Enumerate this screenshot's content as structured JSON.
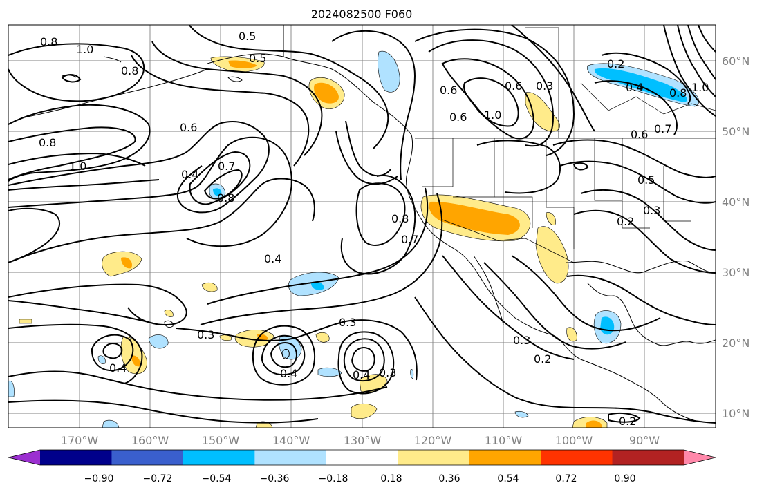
{
  "title": "2024082500 F060",
  "map": {
    "lon_labels": [
      "170°W",
      "160°W",
      "150°W",
      "140°W",
      "130°W",
      "120°W",
      "110°W",
      "100°W",
      "90°W"
    ],
    "lat_labels": [
      "60°N",
      "50°N",
      "40°N",
      "30°N",
      "20°N",
      "10°N"
    ]
  },
  "colorbar": {
    "ticks": [
      "−0.90",
      "−0.72",
      "−0.54",
      "−0.36",
      "−0.18",
      "0.18",
      "0.36",
      "0.54",
      "0.72",
      "0.90"
    ],
    "colors": [
      "#9b30d0",
      "#00008b",
      "#3a5fcd",
      "#00bfff",
      "#b0e2ff",
      "#ffffff",
      "#ffeb8a",
      "#ffa500",
      "#ff3300",
      "#b22222",
      "#ff88aa"
    ]
  },
  "contour_labels": [
    {
      "text": "0.8"
    },
    {
      "text": "1.0"
    },
    {
      "text": "0.8"
    },
    {
      "text": "0.5"
    },
    {
      "text": "0.5"
    },
    {
      "text": "0.6"
    },
    {
      "text": "0.8"
    },
    {
      "text": "1.0"
    },
    {
      "text": "0.4"
    },
    {
      "text": "0.7"
    },
    {
      "text": "0.8"
    },
    {
      "text": "0.4"
    },
    {
      "text": "0.8"
    },
    {
      "text": "0.7"
    },
    {
      "text": "0.6"
    },
    {
      "text": "0.6"
    },
    {
      "text": "1.0"
    },
    {
      "text": "0.3"
    },
    {
      "text": "0.6"
    },
    {
      "text": "0.2"
    },
    {
      "text": "0.4"
    },
    {
      "text": "0.8"
    },
    {
      "text": "1.0"
    },
    {
      "text": "0.6"
    },
    {
      "text": "0.7"
    },
    {
      "text": "0.5"
    },
    {
      "text": "0.3"
    },
    {
      "text": "0.2"
    },
    {
      "text": "0.3"
    },
    {
      "text": "0.4"
    },
    {
      "text": "0.3"
    },
    {
      "text": "0.4"
    },
    {
      "text": "0.3"
    },
    {
      "text": "0.3"
    },
    {
      "text": "0.2"
    },
    {
      "text": "0.2"
    },
    {
      "text": "0.4"
    }
  ]
}
